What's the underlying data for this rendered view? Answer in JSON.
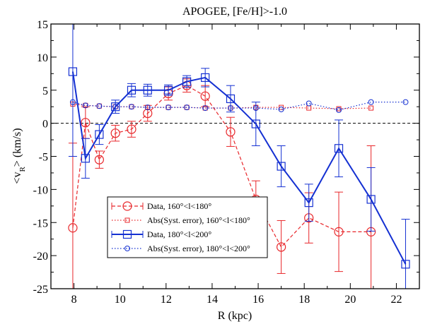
{
  "chart_data": {
    "type": "line",
    "title": "APOGEE, [Fe/H]>-1.0",
    "xlabel": "R (kpc)",
    "ylabel": "<v_R> (km/s)",
    "xlim": [
      7,
      23
    ],
    "ylim": [
      -25,
      15
    ],
    "xticks": [
      8,
      10,
      12,
      14,
      16,
      18,
      20,
      22
    ],
    "yticks": [
      -25,
      -20,
      -15,
      -10,
      -5,
      0,
      5,
      10,
      15
    ],
    "zero_line": true,
    "legend_position": "lower-left",
    "series": [
      {
        "name": "Data, 160°<l<180°",
        "color": "#e8262a",
        "marker": "circle",
        "line": "dashed",
        "x": [
          7.95,
          8.5,
          9.1,
          9.8,
          10.5,
          11.2,
          12.1,
          12.9,
          13.7,
          14.8,
          15.9,
          17.0,
          18.2,
          19.5,
          20.9
        ],
        "y": [
          -15.8,
          0.1,
          -5.5,
          -1.5,
          -0.9,
          1.5,
          4.5,
          5.7,
          4.1,
          -1.3,
          -11.5,
          -18.7,
          -14.3,
          -16.4,
          -16.4
        ],
        "err": [
          12.8,
          2.4,
          1.3,
          1.2,
          1.2,
          1.2,
          1.0,
          1.0,
          1.6,
          2.2,
          2.8,
          4.0,
          3.8,
          6.0,
          13.0
        ]
      },
      {
        "name": "Abs(Syst. error), 160°<l<180°",
        "color": "#e8262a",
        "marker": "square-small",
        "line": "dotted",
        "x": [
          7.95,
          8.5,
          9.1,
          9.8,
          10.5,
          11.2,
          12.1,
          12.9,
          13.7,
          14.8,
          15.9,
          17.0,
          18.2,
          19.5,
          20.9
        ],
        "y": [
          2.9,
          2.7,
          2.6,
          2.5,
          2.5,
          2.4,
          2.4,
          2.4,
          2.3,
          2.3,
          2.4,
          2.4,
          2.3,
          2.2,
          2.3
        ]
      },
      {
        "name": "Data, 180°<l<200°",
        "color": "#1430d2",
        "marker": "square",
        "line": "solid",
        "x": [
          7.95,
          8.5,
          9.1,
          9.8,
          10.5,
          11.2,
          12.1,
          12.9,
          13.7,
          14.8,
          15.9,
          17.0,
          18.2,
          19.5,
          20.9,
          22.4
        ],
        "y": [
          7.8,
          -5.3,
          -1.7,
          2.5,
          5.0,
          5.0,
          5.0,
          6.3,
          6.9,
          3.7,
          -0.1,
          -6.5,
          -12.0,
          -3.8,
          -11.5,
          -21.3
        ],
        "err": [
          12.8,
          3.0,
          1.5,
          1.0,
          1.0,
          0.9,
          0.8,
          0.9,
          1.4,
          2.0,
          3.3,
          3.1,
          2.8,
          4.3,
          4.8,
          6.8
        ]
      },
      {
        "name": "Abs(Syst. error), 180°<l<200°",
        "color": "#1430d2",
        "marker": "circle-small",
        "line": "dotted",
        "x": [
          7.95,
          8.5,
          9.1,
          9.8,
          10.5,
          11.2,
          12.1,
          12.9,
          13.7,
          14.8,
          15.9,
          17.0,
          18.2,
          19.5,
          20.9,
          22.4
        ],
        "y": [
          3.2,
          2.7,
          2.6,
          2.5,
          2.5,
          2.4,
          2.4,
          2.4,
          2.3,
          2.3,
          2.3,
          2.1,
          3.0,
          2.0,
          3.2,
          3.2
        ]
      }
    ]
  }
}
